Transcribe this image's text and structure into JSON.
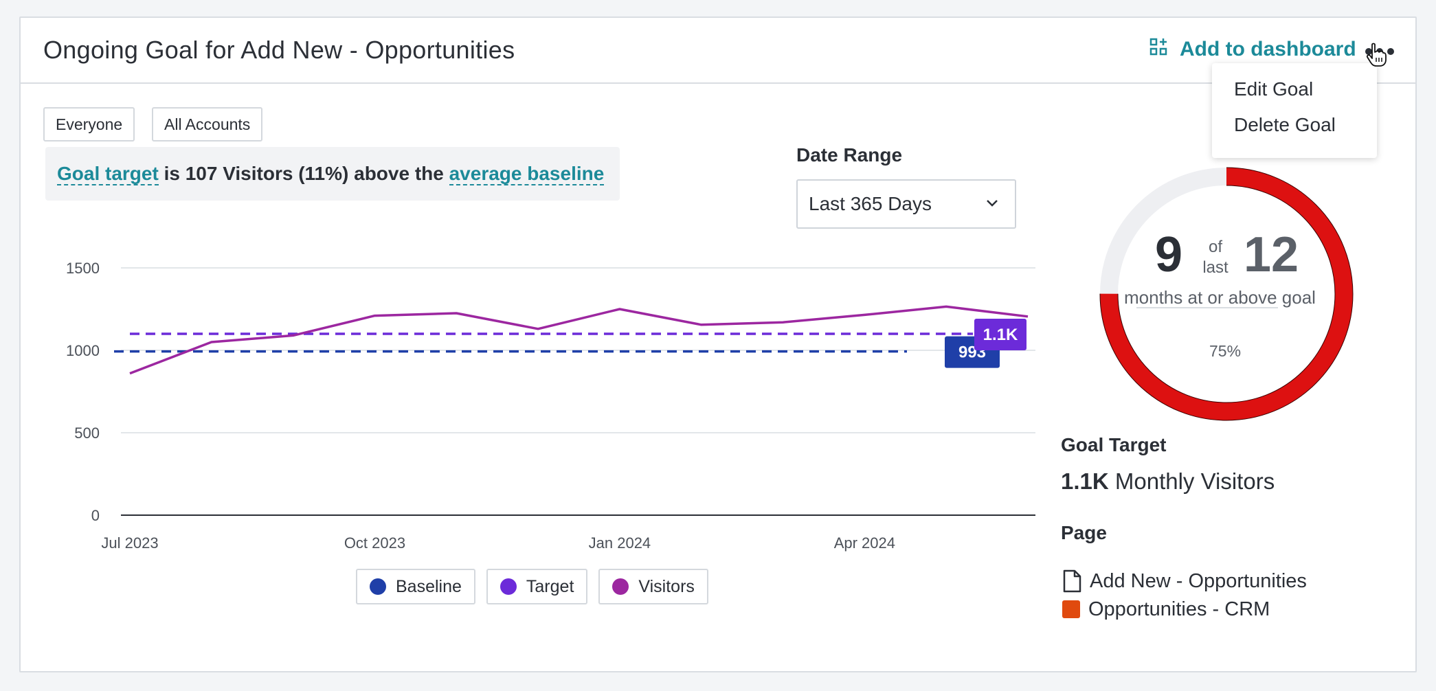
{
  "header": {
    "title": "Ongoing Goal for Add New - Opportunities",
    "add_to_dashboard": "Add to dashboard",
    "more_icon": "ellipsis-icon",
    "dashboard_icon": "dashboard-add-icon"
  },
  "menu": {
    "items": [
      "Edit Goal",
      "Delete Goal"
    ]
  },
  "filters": {
    "segment": "Everyone",
    "accounts": "All Accounts"
  },
  "callout": {
    "link1": "Goal target",
    "middle": " is 107 Visitors (11%) above the ",
    "link2": "average baseline"
  },
  "date_range": {
    "label": "Date Range",
    "value": "Last 365 Days"
  },
  "chart_data": {
    "type": "line",
    "x": [
      "2023-07",
      "2023-08",
      "2023-09",
      "2023-10",
      "2023-11",
      "2023-12",
      "2024-01",
      "2024-02",
      "2024-03",
      "2024-04",
      "2024-05",
      "2024-06"
    ],
    "x_ticks": [
      "Jul 2023",
      "Oct 2023",
      "Jan 2024",
      "Apr 2024"
    ],
    "y_ticks": [
      0,
      500,
      1000,
      1500
    ],
    "ylim": [
      0,
      1500
    ],
    "series": [
      {
        "name": "Visitors",
        "color": "#9c27a0",
        "values": [
          860,
          1050,
          1090,
          1210,
          1225,
          1130,
          1250,
          1155,
          1170,
          1215,
          1265,
          1205
        ]
      },
      {
        "name": "Target",
        "color": "#6c2bd9",
        "values": [
          1100,
          1100,
          1100,
          1100,
          1100,
          1100,
          1100,
          1100,
          1100,
          1100,
          1100,
          1100
        ],
        "style": "dashed",
        "end_label": "1.1K"
      },
      {
        "name": "Baseline",
        "color": "#1f3fa8",
        "values": [
          993,
          993,
          993,
          993,
          993,
          993,
          993,
          993,
          993,
          993,
          993,
          993
        ],
        "style": "dashed",
        "end_label": "993"
      }
    ],
    "legend": [
      "Baseline",
      "Target",
      "Visitors"
    ],
    "grid": true
  },
  "summary": {
    "achieved": "9",
    "of": "of",
    "last": "last",
    "total": "12",
    "caption": "months at or above goal",
    "percent": "75%",
    "fraction": 0.75,
    "ring_color": "#dd1111",
    "track_color": "#eeeff2"
  },
  "goal_target": {
    "label": "Goal Target",
    "value": "1.1K",
    "unit": " Monthly Visitors"
  },
  "page": {
    "label": "Page",
    "name": "Add New - Opportunities",
    "app": "Opportunities - CRM",
    "page_icon": "document-icon",
    "app_color": "#e04a0f"
  }
}
